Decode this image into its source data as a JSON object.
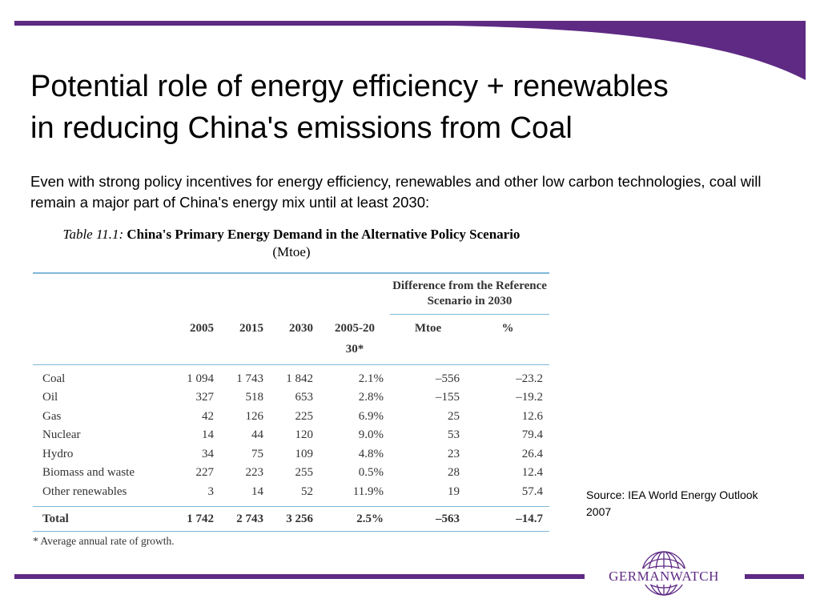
{
  "slide": {
    "title_lines": [
      "Potential role of energy efficiency + renewables",
      "in reducing China's emissions from Coal"
    ],
    "intro": "Even with strong policy incentives for energy efficiency, renewables and other low carbon technologies, coal will remain a major part of China's energy mix until at least 2030:",
    "source": "Source: IEA World Energy Outlook 2007",
    "logo_text": "GERMANWATCH",
    "accent_color": "#5e2a84"
  },
  "table": {
    "title_num": "Table 11.1:",
    "title_name": "China's Primary Energy Demand in the Alternative Policy Scenario",
    "unit": "(Mtoe)",
    "diff_header": "Difference from the Reference Scenario in 2030",
    "columns": [
      "2005",
      "2015",
      "2030",
      "2005-2030*",
      "Mtoe",
      "%"
    ],
    "rows": [
      {
        "label": "Coal",
        "y2005": "1 094",
        "y2015": "1 743",
        "y2030": "1 842",
        "rate": "2.1%",
        "mtoe": "–556",
        "pct": "–23.2"
      },
      {
        "label": "Oil",
        "y2005": "327",
        "y2015": "518",
        "y2030": "653",
        "rate": "2.8%",
        "mtoe": "–155",
        "pct": "–19.2"
      },
      {
        "label": "Gas",
        "y2005": "42",
        "y2015": "126",
        "y2030": "225",
        "rate": "6.9%",
        "mtoe": "25",
        "pct": "12.6"
      },
      {
        "label": "Nuclear",
        "y2005": "14",
        "y2015": "44",
        "y2030": "120",
        "rate": "9.0%",
        "mtoe": "53",
        "pct": "79.4"
      },
      {
        "label": "Hydro",
        "y2005": "34",
        "y2015": "75",
        "y2030": "109",
        "rate": "4.8%",
        "mtoe": "23",
        "pct": "26.4"
      },
      {
        "label": "Biomass and waste",
        "y2005": "227",
        "y2015": "223",
        "y2030": "255",
        "rate": "0.5%",
        "mtoe": "28",
        "pct": "12.4"
      },
      {
        "label": "Other renewables",
        "y2005": "3",
        "y2015": "14",
        "y2030": "52",
        "rate": "11.9%",
        "mtoe": "19",
        "pct": "57.4"
      }
    ],
    "total": {
      "label": "Total",
      "y2005": "1 742",
      "y2015": "2 743",
      "y2030": "3 256",
      "rate": "2.5%",
      "mtoe": "–563",
      "pct": "–14.7"
    },
    "footnote": "* Average annual rate of growth."
  }
}
